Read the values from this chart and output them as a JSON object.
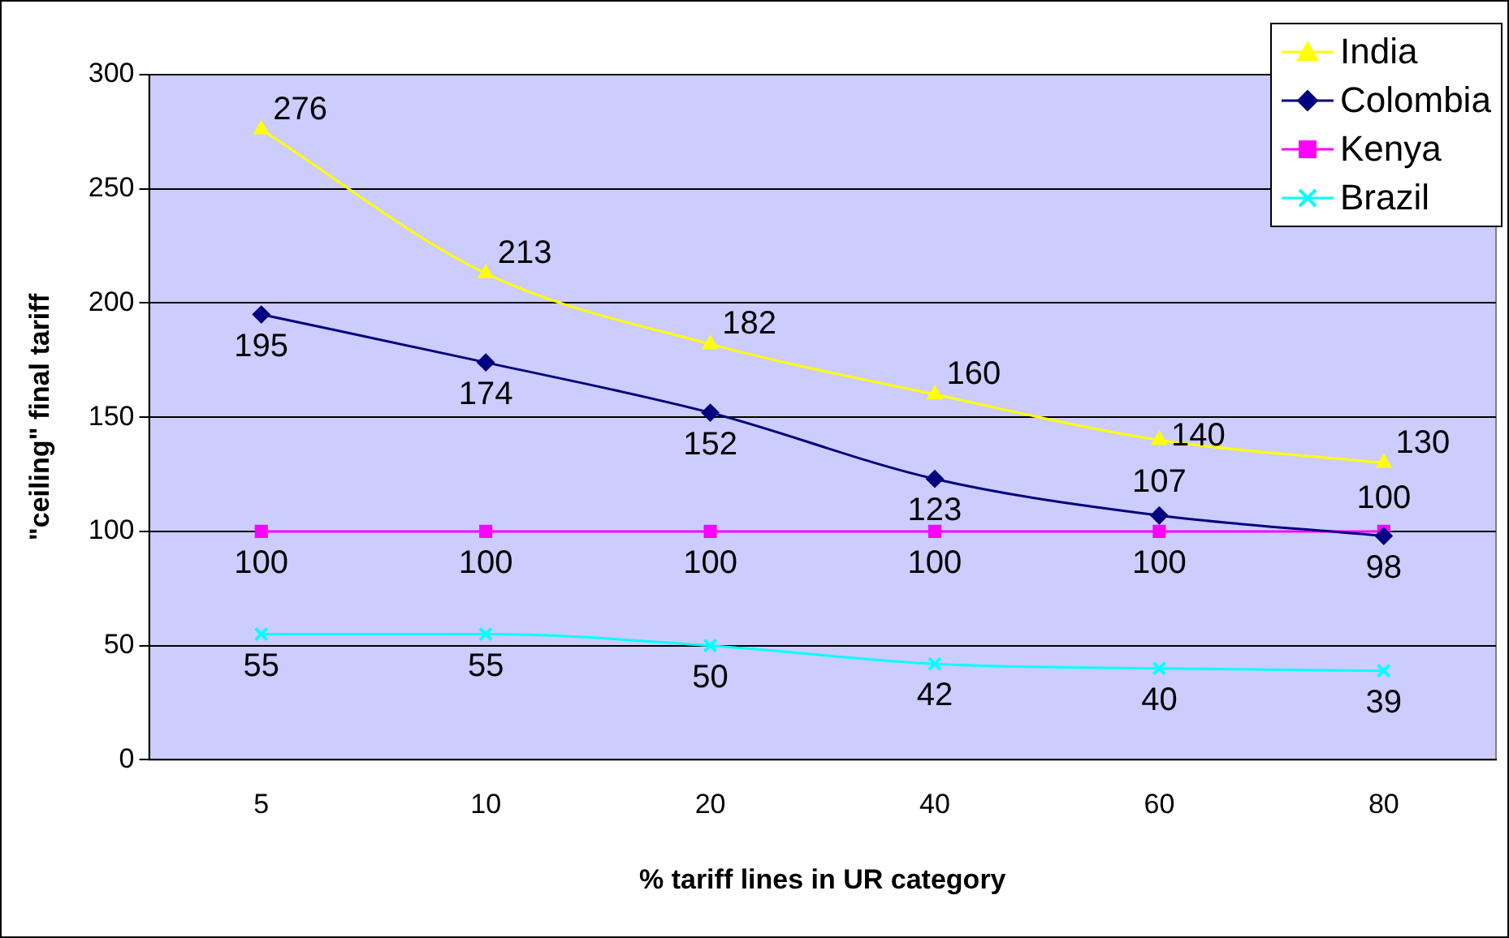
{
  "chart_data": {
    "type": "line",
    "xlabel": "% tariff lines in UR category",
    "ylabel": "\"ceiling\" final tariff",
    "categories": [
      "5",
      "10",
      "20",
      "40",
      "60",
      "80"
    ],
    "series": [
      {
        "name": "India",
        "color": "#ffff00",
        "marker": "triangle",
        "values": [
          276,
          213,
          182,
          160,
          140,
          130
        ]
      },
      {
        "name": "Colombia",
        "color": "#000080",
        "marker": "diamond",
        "values": [
          195,
          174,
          152,
          123,
          107,
          98
        ]
      },
      {
        "name": "Kenya",
        "color": "#ff00ff",
        "marker": "square",
        "values": [
          100,
          100,
          100,
          100,
          100,
          100
        ]
      },
      {
        "name": "Brazil",
        "color": "#00ffff",
        "marker": "cross",
        "values": [
          55,
          55,
          50,
          42,
          40,
          39
        ]
      }
    ],
    "ylim": [
      0,
      300
    ],
    "yticks": [
      0,
      50,
      100,
      150,
      200,
      250,
      300
    ],
    "grid": "y",
    "legend": "top right",
    "data_labels": true
  }
}
